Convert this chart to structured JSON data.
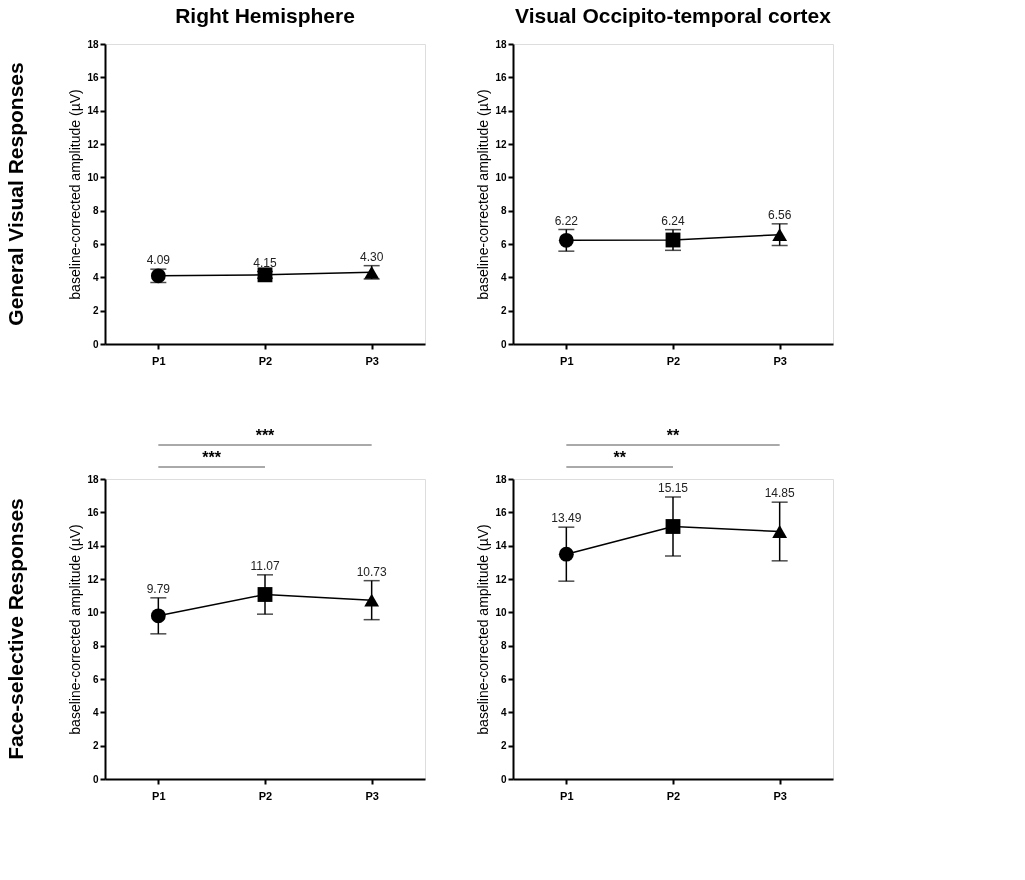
{
  "chart_data": [
    {
      "type": "line",
      "title": "Right Hemisphere",
      "subtitle": "General Visual Responses",
      "ylabel": "baseline-corrected amplitude (µV)",
      "categories": [
        "P1",
        "P2",
        "P3"
      ],
      "ylim": [
        0,
        18
      ],
      "yticks": [
        0,
        2,
        4,
        6,
        8,
        10,
        12,
        14,
        16,
        18
      ],
      "grid": false,
      "series": [
        {
          "color": "#000000",
          "values": [
            4.09,
            4.15,
            4.3
          ],
          "errors": [
            0.4,
            0.2,
            0.4
          ],
          "value_labels": [
            "4.09",
            "4.15",
            "4.30"
          ],
          "marker": [
            "circle",
            "square",
            "triangle"
          ],
          "line_style": "solid"
        }
      ]
    },
    {
      "type": "line",
      "title": "Visual Occipito-temporal cortex",
      "ylabel": "baseline-corrected amplitude (µV)",
      "categories": [
        "P1",
        "P2",
        "P3"
      ],
      "ylim": [
        0,
        18
      ],
      "yticks": [
        0,
        2,
        4,
        6,
        8,
        10,
        12,
        14,
        16,
        18
      ],
      "grid": false,
      "series": [
        {
          "color": "#000000",
          "values": [
            6.22,
            6.24,
            6.56
          ],
          "errors": [
            0.65,
            0.62,
            0.65
          ],
          "value_labels": [
            "6.22",
            "6.24",
            "6.56"
          ],
          "marker": [
            "circle",
            "square",
            "triangle"
          ],
          "line_style": "solid"
        }
      ]
    },
    {
      "type": "line",
      "subtitle": "Face-selective Responses",
      "ylabel": "baseline-corrected amplitude (µV)",
      "categories": [
        "P1",
        "P2",
        "P3"
      ],
      "ylim": [
        0,
        18
      ],
      "yticks": [
        0,
        2,
        4,
        6,
        8,
        10,
        12,
        14,
        16,
        18
      ],
      "grid": false,
      "annotations": [
        "***",
        "***"
      ],
      "series": [
        {
          "color": "#000000",
          "values": [
            9.79,
            11.07,
            10.73
          ],
          "errors": [
            1.08,
            1.18,
            1.17
          ],
          "value_labels": [
            "9.79",
            "11.07",
            "10.73"
          ],
          "marker": [
            "circle",
            "square",
            "triangle"
          ],
          "line_style": "solid"
        }
      ]
    },
    {
      "type": "line",
      "ylabel": "baseline-corrected amplitude (µV)",
      "categories": [
        "P1",
        "P2",
        "P3"
      ],
      "ylim": [
        0,
        18
      ],
      "yticks": [
        0,
        2,
        4,
        6,
        8,
        10,
        12,
        14,
        16,
        18
      ],
      "grid": false,
      "annotations": [
        "**",
        "**"
      ],
      "series": [
        {
          "color": "#000000",
          "values": [
            13.49,
            15.15,
            14.85
          ],
          "errors": [
            1.62,
            1.77,
            1.76
          ],
          "value_labels": [
            "13.49",
            "15.15",
            "14.85"
          ],
          "marker": [
            "circle",
            "square",
            "triangle"
          ],
          "line_style": "solid"
        }
      ]
    }
  ]
}
